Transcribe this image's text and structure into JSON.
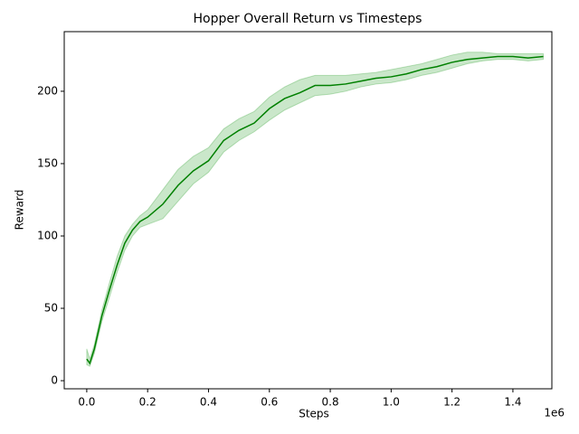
{
  "chart_data": {
    "type": "line",
    "title": "Hopper Overall Return vs Timesteps",
    "x_label": "Steps",
    "y_label": "Reward",
    "x_offset_label": "1e6",
    "x": [
      0,
      10000,
      25000,
      50000,
      75000,
      100000,
      125000,
      150000,
      175000,
      200000,
      250000,
      300000,
      350000,
      400000,
      450000,
      500000,
      550000,
      600000,
      650000,
      700000,
      750000,
      800000,
      850000,
      900000,
      950000,
      1000000,
      1050000,
      1100000,
      1150000,
      1200000,
      1250000,
      1300000,
      1350000,
      1400000,
      1450000,
      1500000
    ],
    "series": [
      {
        "color": "#008000",
        "band_color": "#2ca02c",
        "values": [
          15,
          12,
          22,
          45,
          63,
          80,
          95,
          104,
          110,
          113,
          122,
          135,
          145,
          152,
          166,
          173,
          178,
          188,
          195,
          199,
          204,
          204,
          205,
          207,
          209,
          210,
          212,
          215,
          217,
          220,
          222,
          223,
          224,
          224,
          223,
          224
        ],
        "lower": [
          11,
          10,
          19,
          41,
          58,
          75,
          90,
          100,
          106,
          108,
          112,
          124,
          136,
          144,
          158,
          166,
          172,
          180,
          187,
          192,
          197,
          198,
          200,
          203,
          205,
          206,
          208,
          211,
          213,
          216,
          219,
          221,
          222,
          222,
          221,
          222
        ],
        "upper": [
          22,
          15,
          25,
          49,
          68,
          86,
          100,
          108,
          114,
          118,
          132,
          146,
          155,
          161,
          174,
          181,
          186,
          196,
          203,
          208,
          211,
          211,
          211,
          212,
          213,
          215,
          217,
          219,
          222,
          225,
          227,
          227,
          226,
          226,
          226,
          226
        ]
      }
    ],
    "xlim": [
      -74000,
      1528000
    ],
    "ylim": [
      -5.6,
      241.2
    ],
    "xticks": [
      {
        "value": 0,
        "label": "0.0"
      },
      {
        "value": 200000,
        "label": "0.2"
      },
      {
        "value": 400000,
        "label": "0.4"
      },
      {
        "value": 600000,
        "label": "0.6"
      },
      {
        "value": 800000,
        "label": "0.8"
      },
      {
        "value": 1000000,
        "label": "1.0"
      },
      {
        "value": 1200000,
        "label": "1.2"
      },
      {
        "value": 1400000,
        "label": "1.4"
      }
    ],
    "yticks": [
      0,
      50,
      100,
      150,
      200
    ],
    "grid": false
  }
}
